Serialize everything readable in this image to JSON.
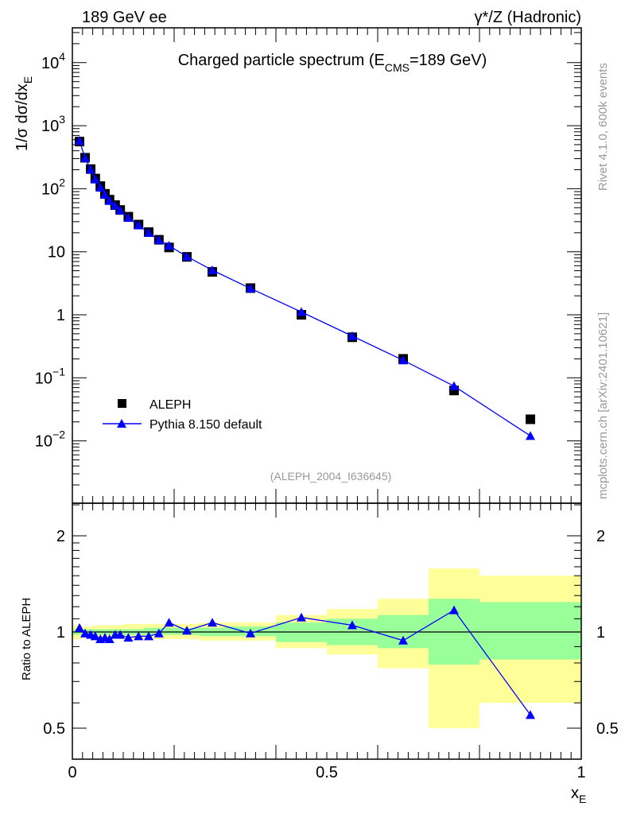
{
  "header": {
    "left": "189 GeV ee",
    "right": "γ*/Z (Hadronic)"
  },
  "side_texts": {
    "rivet": "Rivet 4.1.0,  600k events",
    "mcplots": "mcplots.cern.ch [arXiv:2401.10621]"
  },
  "chart_data": [
    {
      "type": "scatter",
      "title": "Charged particle spectrum (E",
      "title_sub": "CMS",
      "title_tail": "=189 GeV)",
      "ylabel": "1/σ  dσ/dx",
      "ylabel_sub": "E",
      "yscale": "log",
      "ylim": [
        0.001,
        30000
      ],
      "xlim": [
        0,
        1
      ],
      "yticks": [
        {
          "v": 0.01,
          "base": "10",
          "exp": "−2"
        },
        {
          "v": 0.1,
          "base": "10",
          "exp": "−1"
        },
        {
          "v": 1,
          "base": "1",
          "exp": ""
        },
        {
          "v": 10,
          "base": "10",
          "exp": ""
        },
        {
          "v": 100,
          "base": "10",
          "exp": "2"
        },
        {
          "v": 1000,
          "base": "10",
          "exp": "3"
        },
        {
          "v": 10000,
          "base": "10",
          "exp": "4"
        }
      ],
      "annotation": "(ALEPH_2004_I636645)",
      "legend": [
        {
          "name": "ALEPH",
          "marker": "square",
          "color": "#000000"
        },
        {
          "name": "Pythia 8.150 default",
          "marker": "triangle",
          "color": "#0000ff"
        }
      ],
      "legend_position": "bottom-left",
      "x": [
        0.014,
        0.025,
        0.036,
        0.045,
        0.055,
        0.064,
        0.073,
        0.084,
        0.094,
        0.11,
        0.13,
        0.15,
        0.17,
        0.19,
        0.225,
        0.275,
        0.35,
        0.45,
        0.55,
        0.65,
        0.75,
        0.9
      ],
      "bin_edges": [
        0,
        0.02,
        0.03,
        0.04,
        0.05,
        0.06,
        0.07,
        0.08,
        0.09,
        0.1,
        0.12,
        0.14,
        0.16,
        0.18,
        0.2,
        0.25,
        0.3,
        0.4,
        0.5,
        0.6,
        0.7,
        0.8,
        1.0
      ],
      "series": [
        {
          "name": "ALEPH",
          "values": [
            560,
            310,
            205,
            145,
            110,
            83,
            67,
            55,
            46,
            36,
            27,
            20.5,
            15.5,
            11.7,
            8.3,
            4.8,
            2.65,
            1.0,
            0.44,
            0.2,
            0.063,
            0.022
          ]
        },
        {
          "name": "Pythia 8.150 default",
          "values": [
            577,
            307,
            201,
            141,
            104,
            80,
            64,
            54,
            45,
            34.6,
            26.2,
            19.9,
            15.3,
            12.5,
            8.4,
            5.1,
            2.62,
            1.11,
            0.46,
            0.19,
            0.074,
            0.012
          ]
        }
      ]
    },
    {
      "type": "line",
      "ylabel": "Ratio to ALEPH",
      "xlabel": "x",
      "xlabel_sub": "E",
      "yscale": "log",
      "ylim": [
        0.4,
        2.5
      ],
      "yticks": [
        {
          "v": 0.5,
          "label": "0.5"
        },
        {
          "v": 1,
          "label": "1"
        },
        {
          "v": 2,
          "label": "2"
        }
      ],
      "xticks": [
        {
          "v": 0,
          "label": "0"
        },
        {
          "v": 0.5,
          "label": "0.5"
        },
        {
          "v": 1,
          "label": "1"
        }
      ],
      "ratio": [
        1.03,
        0.99,
        0.98,
        0.97,
        0.95,
        0.96,
        0.95,
        0.98,
        0.98,
        0.96,
        0.97,
        0.97,
        0.99,
        1.07,
        1.01,
        1.07,
        0.99,
        1.11,
        1.05,
        0.94,
        1.17,
        0.55
      ],
      "band_total": [
        [
          0.95,
          1.05
        ],
        [
          0.96,
          1.04
        ],
        [
          0.96,
          1.04
        ],
        [
          0.96,
          1.05
        ],
        [
          0.96,
          1.05
        ],
        [
          0.96,
          1.05
        ],
        [
          0.96,
          1.05
        ],
        [
          0.96,
          1.05
        ],
        [
          0.95,
          1.05
        ],
        [
          0.95,
          1.06
        ],
        [
          0.95,
          1.06
        ],
        [
          0.95,
          1.06
        ],
        [
          0.95,
          1.06
        ],
        [
          0.95,
          1.06
        ],
        [
          0.95,
          1.06
        ],
        [
          0.94,
          1.07
        ],
        [
          0.94,
          1.07
        ],
        [
          0.89,
          1.13
        ],
        [
          0.85,
          1.18
        ],
        [
          0.77,
          1.27
        ],
        [
          0.5,
          1.58
        ],
        [
          0.6,
          1.5
        ]
      ],
      "band_stat": [
        [
          0.98,
          1.02
        ],
        [
          0.98,
          1.02
        ],
        [
          0.98,
          1.02
        ],
        [
          0.98,
          1.02
        ],
        [
          0.98,
          1.02
        ],
        [
          0.98,
          1.02
        ],
        [
          0.98,
          1.02
        ],
        [
          0.98,
          1.02
        ],
        [
          0.98,
          1.02
        ],
        [
          0.98,
          1.02
        ],
        [
          0.98,
          1.02
        ],
        [
          0.98,
          1.03
        ],
        [
          0.98,
          1.03
        ],
        [
          0.98,
          1.03
        ],
        [
          0.98,
          1.03
        ],
        [
          0.97,
          1.03
        ],
        [
          0.97,
          1.04
        ],
        [
          0.93,
          1.07
        ],
        [
          0.91,
          1.1
        ],
        [
          0.89,
          1.13
        ],
        [
          0.79,
          1.27
        ],
        [
          0.82,
          1.24
        ]
      ],
      "colors": {
        "total": "#ffff99",
        "stat": "#99ff99",
        "mc": "#0000ff",
        "data": "#000000"
      }
    }
  ]
}
